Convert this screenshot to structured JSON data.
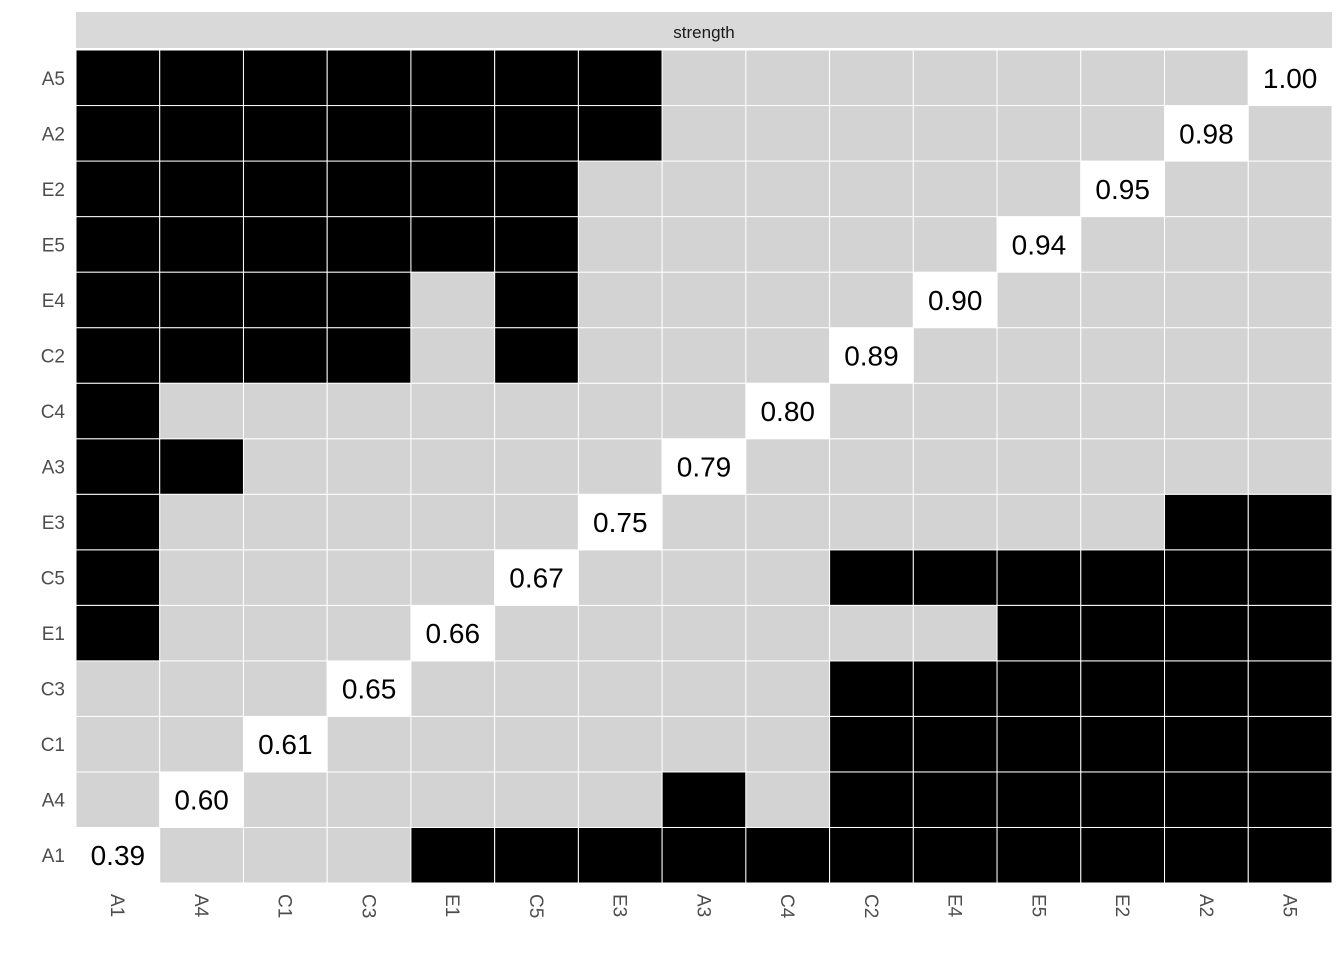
{
  "chart_data": {
    "type": "heatmap",
    "panel_title": "strength",
    "x_labels": [
      "A1",
      "A4",
      "C1",
      "C3",
      "E1",
      "C5",
      "E3",
      "A3",
      "C4",
      "C2",
      "E4",
      "E5",
      "E2",
      "A2",
      "A5"
    ],
    "y_labels": [
      "A1",
      "A4",
      "C1",
      "C3",
      "E1",
      "C5",
      "E3",
      "A3",
      "C4",
      "C2",
      "E4",
      "E5",
      "E2",
      "A2",
      "A5"
    ],
    "diagonal_values": [
      "0.39",
      "0.60",
      "0.61",
      "0.65",
      "0.66",
      "0.67",
      "0.75",
      "0.79",
      "0.80",
      "0.89",
      "0.90",
      "0.94",
      "0.95",
      "0.98",
      "1.00"
    ],
    "matrix": [
      [
        2,
        0,
        0,
        0,
        1,
        1,
        1,
        1,
        1,
        1,
        1,
        1,
        1,
        1,
        1
      ],
      [
        0,
        2,
        0,
        0,
        0,
        0,
        0,
        1,
        0,
        1,
        1,
        1,
        1,
        1,
        1
      ],
      [
        0,
        0,
        2,
        0,
        0,
        0,
        0,
        0,
        0,
        1,
        1,
        1,
        1,
        1,
        1
      ],
      [
        0,
        0,
        0,
        2,
        0,
        0,
        0,
        0,
        0,
        1,
        1,
        1,
        1,
        1,
        1
      ],
      [
        1,
        0,
        0,
        0,
        2,
        0,
        0,
        0,
        0,
        0,
        0,
        1,
        1,
        1,
        1
      ],
      [
        1,
        0,
        0,
        0,
        0,
        2,
        0,
        0,
        0,
        1,
        1,
        1,
        1,
        1,
        1
      ],
      [
        1,
        0,
        0,
        0,
        0,
        0,
        2,
        0,
        0,
        0,
        0,
        0,
        0,
        1,
        1
      ],
      [
        1,
        1,
        0,
        0,
        0,
        0,
        0,
        2,
        0,
        0,
        0,
        0,
        0,
        0,
        0
      ],
      [
        1,
        0,
        0,
        0,
        0,
        0,
        0,
        0,
        2,
        0,
        0,
        0,
        0,
        0,
        0
      ],
      [
        1,
        1,
        1,
        1,
        0,
        1,
        0,
        0,
        0,
        2,
        0,
        0,
        0,
        0,
        0
      ],
      [
        1,
        1,
        1,
        1,
        0,
        1,
        0,
        0,
        0,
        0,
        2,
        0,
        0,
        0,
        0
      ],
      [
        1,
        1,
        1,
        1,
        1,
        1,
        0,
        0,
        0,
        0,
        0,
        2,
        0,
        0,
        0
      ],
      [
        1,
        1,
        1,
        1,
        1,
        1,
        0,
        0,
        0,
        0,
        0,
        0,
        2,
        0,
        0
      ],
      [
        1,
        1,
        1,
        1,
        1,
        1,
        1,
        0,
        0,
        0,
        0,
        0,
        0,
        2,
        0
      ],
      [
        1,
        1,
        1,
        1,
        1,
        1,
        1,
        0,
        0,
        0,
        0,
        0,
        0,
        0,
        2
      ]
    ],
    "legend": "none",
    "colors": {
      "filled": "#000000",
      "empty": "#d3d3d3",
      "diagonal": "#ffffff",
      "strip": "#d9d9d9",
      "grid": "#ffffff",
      "tick_text": "#4d4d4d"
    }
  }
}
